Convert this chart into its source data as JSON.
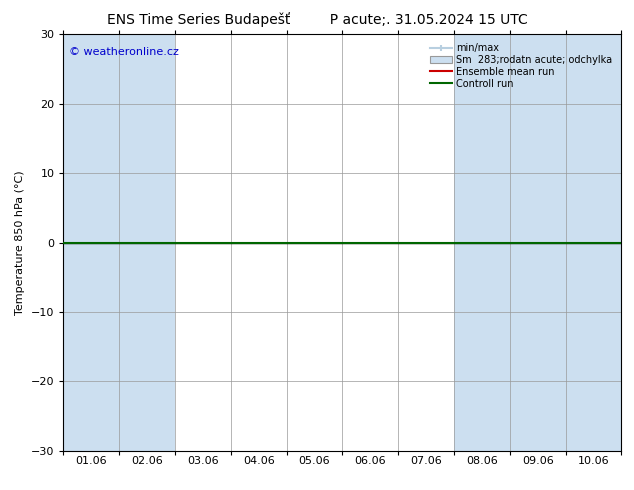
{
  "title": "ENS Time Series Budapešť         P acute;. 31.05.2024 15 UTC",
  "ylabel": "Temperature 850 hPa (°C)",
  "ylim": [
    -30,
    30
  ],
  "yticks": [
    -30,
    -20,
    -10,
    0,
    10,
    20,
    30
  ],
  "x_labels": [
    "01.06",
    "02.06",
    "03.06",
    "04.06",
    "05.06",
    "06.06",
    "07.06",
    "08.06",
    "09.06",
    "10.06"
  ],
  "n_days": 10,
  "shaded_columns": [
    0,
    1,
    7,
    8,
    9
  ],
  "watermark": "© weatheronline.cz",
  "legend_items": [
    {
      "label": "min/max",
      "type": "minmax"
    },
    {
      "label": "Sm  283;rodatn acute; odchylka",
      "type": "shade"
    },
    {
      "label": "Ensemble mean run",
      "color": "#cc0000",
      "type": "line"
    },
    {
      "label": "Controll run",
      "color": "#006600",
      "type": "line"
    }
  ],
  "background_color": "#ffffff",
  "plot_bg_color": "#ffffff",
  "shaded_color": "#ccdff0",
  "minmax_color": "#b8cfe0",
  "shade_color": "#ccdff0",
  "title_fontsize": 10,
  "axis_fontsize": 8,
  "tick_fontsize": 8,
  "zero_line_color": "#000000",
  "control_run_color": "#006600",
  "ensemble_mean_color": "#cc0000",
  "border_color": "#000000",
  "watermark_color": "#0000cc"
}
